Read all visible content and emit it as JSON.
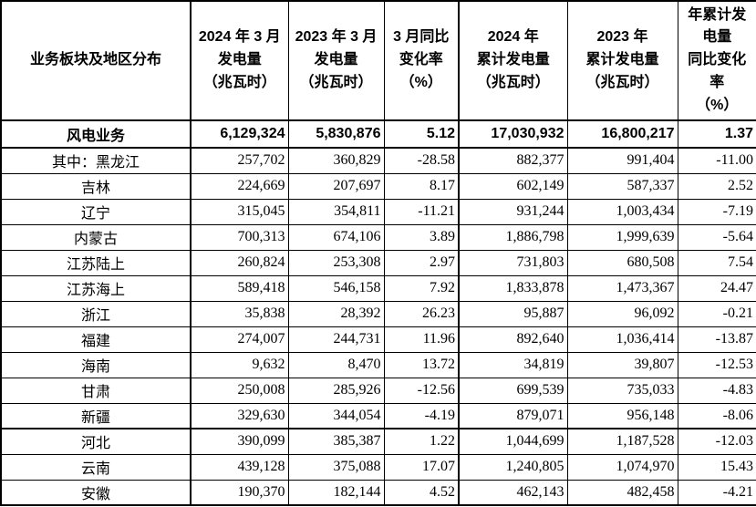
{
  "table": {
    "columns": [
      {
        "key": "segment",
        "label": "业务板块及地区分布"
      },
      {
        "key": "gen_2024_03",
        "label": "2024 年 3 月\n发电量\n（兆瓦时）"
      },
      {
        "key": "gen_2023_03",
        "label": "2023 年 3 月\n发电量\n（兆瓦时）"
      },
      {
        "key": "mar_yoy_pct",
        "label": "3 月同比\n变化率\n（%）"
      },
      {
        "key": "cum_2024",
        "label": "2024 年\n累计发电量\n（兆瓦时）"
      },
      {
        "key": "cum_2023",
        "label": "2023 年\n累计发电量\n（兆瓦时）"
      },
      {
        "key": "cum_yoy_pct",
        "label": "年累计发\n电量\n同比变化\n率\n（%）"
      }
    ],
    "rows": [
      {
        "label": "风电业务",
        "is_total": true,
        "values": [
          "6,129,324",
          "5,830,876",
          "5.12",
          "17,030,932",
          "16,800,217",
          "1.37"
        ]
      },
      {
        "label": "其中：黑龙江",
        "is_total": false,
        "values": [
          "257,702",
          "360,829",
          "-28.58",
          "882,377",
          "991,404",
          "-11.00"
        ]
      },
      {
        "label": "吉林",
        "is_total": false,
        "values": [
          "224,669",
          "207,697",
          "8.17",
          "602,149",
          "587,337",
          "2.52"
        ]
      },
      {
        "label": "辽宁",
        "is_total": false,
        "values": [
          "315,045",
          "354,811",
          "-11.21",
          "931,244",
          "1,003,434",
          "-7.19"
        ]
      },
      {
        "label": "内蒙古",
        "is_total": false,
        "values": [
          "700,313",
          "674,106",
          "3.89",
          "1,886,798",
          "1,999,639",
          "-5.64"
        ]
      },
      {
        "label": "江苏陆上",
        "is_total": false,
        "values": [
          "260,824",
          "253,308",
          "2.97",
          "731,803",
          "680,508",
          "7.54"
        ]
      },
      {
        "label": "江苏海上",
        "is_total": false,
        "values": [
          "589,418",
          "546,158",
          "7.92",
          "1,833,878",
          "1,473,367",
          "24.47"
        ]
      },
      {
        "label": "浙江",
        "is_total": false,
        "values": [
          "35,838",
          "28,392",
          "26.23",
          "95,887",
          "96,092",
          "-0.21"
        ]
      },
      {
        "label": "福建",
        "is_total": false,
        "values": [
          "274,007",
          "244,731",
          "11.96",
          "892,640",
          "1,036,414",
          "-13.87"
        ]
      },
      {
        "label": "海南",
        "is_total": false,
        "values": [
          "9,632",
          "8,470",
          "13.72",
          "34,819",
          "39,807",
          "-12.53"
        ]
      },
      {
        "label": "甘肃",
        "is_total": false,
        "values": [
          "250,008",
          "285,926",
          "-12.56",
          "699,539",
          "735,033",
          "-4.83"
        ]
      },
      {
        "label": "新疆",
        "is_total": false,
        "values": [
          "329,630",
          "344,054",
          "-4.19",
          "879,071",
          "956,148",
          "-8.06"
        ]
      },
      {
        "label": "河北",
        "is_total": false,
        "values": [
          "390,099",
          "385,387",
          "1.22",
          "1,044,699",
          "1,187,528",
          "-12.03"
        ]
      },
      {
        "label": "云南",
        "is_total": false,
        "values": [
          "439,128",
          "375,088",
          "17.07",
          "1,240,805",
          "1,074,970",
          "15.43"
        ]
      },
      {
        "label": "安徽",
        "is_total": false,
        "values": [
          "190,370",
          "182,144",
          "4.52",
          "462,143",
          "482,458",
          "-4.21"
        ]
      }
    ]
  }
}
